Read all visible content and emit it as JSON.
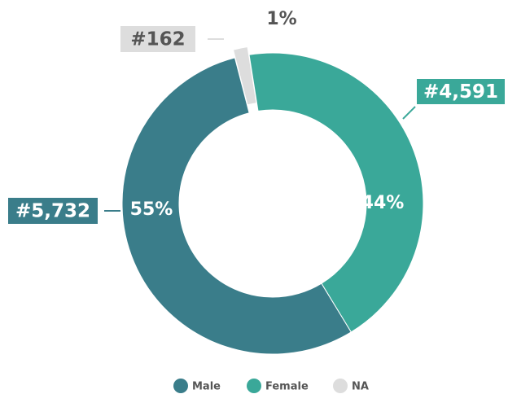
{
  "chart_data": {
    "type": "donut",
    "categories": [
      "Female",
      "Male",
      "NA"
    ],
    "values": [
      4591,
      5732,
      162
    ],
    "value_labels": [
      "#4,591",
      "#5,732",
      "#162"
    ],
    "percents": [
      44,
      55,
      1
    ],
    "percent_labels": [
      "44%",
      "55%",
      "1%"
    ],
    "colors": [
      "#3aa899",
      "#3a7d8a",
      "#dddddd"
    ],
    "legend_order": [
      1,
      0,
      2
    ],
    "legend": "bottom"
  }
}
